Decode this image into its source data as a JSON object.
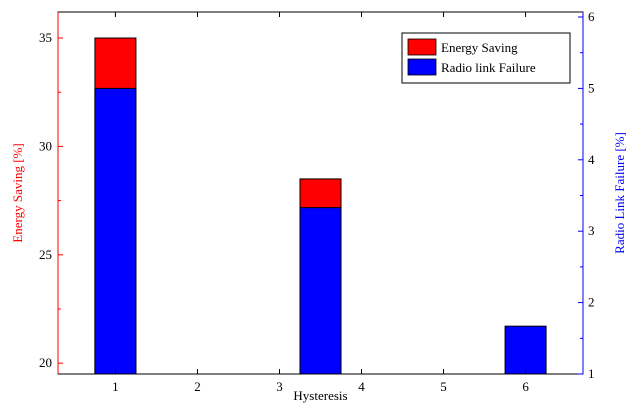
{
  "chart_data": {
    "type": "bar",
    "xlabel": "Hysteresis",
    "x_ticks": [
      "1",
      "2",
      "3",
      "4",
      "5",
      "6"
    ],
    "xlim": [
      0.3,
      6.7
    ],
    "left_axis": {
      "label": "Energy Saving [%]",
      "color": "#ff0000",
      "ylim": [
        19.5,
        36.2
      ],
      "ticks": [
        20,
        25,
        30,
        35
      ],
      "tick_labels": [
        "20",
        "25",
        "30",
        "35"
      ]
    },
    "right_axis": {
      "label": "Radio Link Failure [%]",
      "color": "#0000ff",
      "ylim": [
        1,
        6.07
      ],
      "ticks": [
        1,
        2,
        3,
        4,
        5,
        6
      ],
      "tick_labels": [
        "1",
        "2",
        "3",
        "4",
        "5",
        "6"
      ]
    },
    "series": [
      {
        "name": "Energy Saving",
        "axis": "left",
        "color": "#ff0000",
        "points": [
          {
            "x": 1,
            "value": 35.0
          },
          {
            "x": 3.5,
            "value": 28.5
          }
        ]
      },
      {
        "name": "Radio link Failure",
        "axis": "right",
        "color": "#0000ff",
        "points": [
          {
            "x": 1,
            "value": 5.0
          },
          {
            "x": 3.5,
            "value": 3.33
          },
          {
            "x": 6,
            "value": 1.67
          }
        ]
      }
    ],
    "bar_width": 0.5,
    "legend": {
      "position": "top-right",
      "entries": [
        "Energy Saving",
        "Radio link Failure"
      ]
    },
    "grid": false
  }
}
